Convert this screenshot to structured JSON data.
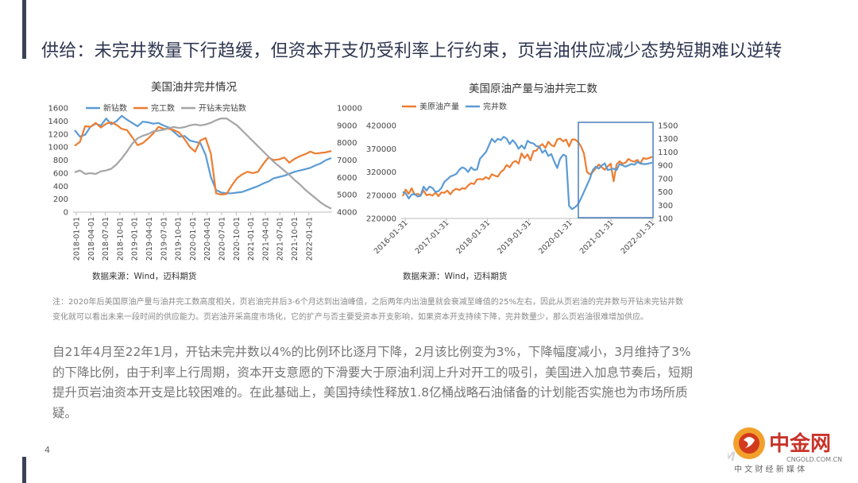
{
  "slide": {
    "title": "供给：未完井数量下行趋缓，但资本开支仍受利率上行约束，页岩油供应减少态势短期难以逆转",
    "note": "注：2020年后美国原油产量与油井完工数高度相关，页岩油完井后3-6个月达到出油峰值，之后两年内出油量就会衰减至峰值的25%左右，因此从页岩油的完井数与开钻未完钻井数变化就可以看出未来一段时间的供应能力。页岩油开采高度市场化，它的扩产与否主要受资本开支影响，如果资本开支持续下降，完井数量少，那么页岩油很难增加供应。",
    "body": "自21年4月至22年1月，开钻未完井数以4%的比例环比逐月下降，2月该比例变为3%，下降幅度减小，3月维持了3%的下降比例，由于利率上行周期，资本开支意愿的下滑要大于原油利润上升对开工的吸引，美国进入加息节奏后，短期提升页岩油资本开支是比较困难的。在此基础上，美国持续性释放1.8亿桶战略石油储备的计划能否实施也为市场所质疑。",
    "page_number": "4",
    "logo": {
      "cn": "中金网",
      "domain": "CNGOLD.COM.CN",
      "tagline": "中 文 财 经 新 媒 体",
      "overlay": "迈科期货"
    }
  },
  "colors": {
    "blue": "#5b9bd5",
    "orange": "#ed7d31",
    "gray": "#a5a5a5",
    "accent": "#3a4256"
  },
  "chart_data": [
    {
      "type": "line",
      "title": "美国油井完井情况",
      "source": "数据来源：Wind，迈科期货",
      "legend_position": "top",
      "left_axis": {
        "ticks": [
          "0",
          "200",
          "400",
          "600",
          "800",
          "1000",
          "1200",
          "1400",
          "1600"
        ],
        "range": [
          0,
          1600
        ]
      },
      "right_axis": {
        "ticks": [
          "4000",
          "5000",
          "6000",
          "7000",
          "8000",
          "9000",
          "10000"
        ],
        "range": [
          4000,
          10000
        ]
      },
      "x_ticks": [
        "2018-01-01",
        "2018-04-01",
        "2018-07-01",
        "2018-10-01",
        "2019-01-01",
        "2019-04-01",
        "2019-07-01",
        "2019-10-01",
        "2020-01-01",
        "2020-04-01",
        "2020-07-01",
        "2020-10-01",
        "2021-01-01",
        "2021-04-01",
        "2021-07-01",
        "2021-10-01",
        "2022-01-01"
      ],
      "series": [
        {
          "name": "新钻数",
          "axis": "left",
          "color": "blue",
          "values": [
            1260,
            1160,
            1190,
            1310,
            1360,
            1330,
            1440,
            1350,
            1400,
            1480,
            1420,
            1370,
            1320,
            1390,
            1380,
            1360,
            1370,
            1330,
            1300,
            1230,
            1160,
            1170,
            1100,
            1080,
            1060,
            880,
            540,
            340,
            300,
            290,
            290,
            300,
            310,
            340,
            370,
            400,
            440,
            470,
            520,
            540,
            560,
            590,
            620,
            640,
            660,
            680,
            720,
            750,
            800,
            830
          ]
        },
        {
          "name": "完工数",
          "axis": "left",
          "color": "orange",
          "values": [
            1020,
            1080,
            1320,
            1310,
            1370,
            1300,
            1360,
            1380,
            1340,
            1280,
            1260,
            1150,
            1030,
            1060,
            1130,
            1210,
            1310,
            1280,
            1280,
            1260,
            1220,
            1120,
            1000,
            930,
            1100,
            1140,
            900,
            290,
            270,
            280,
            410,
            520,
            580,
            620,
            600,
            620,
            740,
            840,
            800,
            810,
            840,
            760,
            820,
            860,
            890,
            930,
            900,
            910,
            920,
            940
          ]
        },
        {
          "name": "开钻未完钻数",
          "axis": "right",
          "color": "gray",
          "values": [
            6300,
            6400,
            6200,
            6250,
            6200,
            6350,
            6400,
            6500,
            6750,
            7100,
            7500,
            7950,
            8250,
            8400,
            8500,
            8650,
            8700,
            8750,
            8850,
            8900,
            8850,
            8900,
            9000,
            9050,
            9000,
            9050,
            9150,
            9300,
            9400,
            9400,
            9200,
            9000,
            8700,
            8400,
            8100,
            7800,
            7500,
            7200,
            6900,
            6650,
            6400,
            6150,
            5850,
            5600,
            5300,
            5050,
            4800,
            4550,
            4350,
            4200
          ]
        }
      ]
    },
    {
      "type": "line",
      "title": "美国原油产量与油井完工数",
      "source": "数据来源：Wind，迈科期货",
      "legend_position": "top",
      "left_axis": {
        "ticks": [
          "220000",
          "270000",
          "320000",
          "370000",
          "420000"
        ],
        "range": [
          220000,
          420000
        ]
      },
      "right_axis": {
        "ticks": [
          "100",
          "300",
          "500",
          "700",
          "900",
          "1100",
          "1300",
          "1500"
        ],
        "range": [
          100,
          1500
        ]
      },
      "x_ticks": [
        "2016-01-31",
        "2017-01-31",
        "2018-01-31",
        "2019-01-31",
        "2020-01-31",
        "2021-01-31",
        "2022-01-31"
      ],
      "series": [
        {
          "name": "美原油产量",
          "axis": "left",
          "color": "orange",
          "values": [
            268000,
            282000,
            273000,
            285000,
            271000,
            273000,
            270000,
            280000,
            270000,
            272000,
            269000,
            276000,
            268000,
            276000,
            275000,
            280000,
            272000,
            280000,
            284000,
            281000,
            285000,
            284000,
            291000,
            296000,
            294000,
            304000,
            305000,
            304000,
            309000,
            305000,
            315000,
            312000,
            310000,
            320000,
            325000,
            335000,
            330000,
            340000,
            344000,
            338000,
            360000,
            350000,
            358000,
            345000,
            365000,
            366000,
            375000,
            380000,
            372000,
            385000,
            378000,
            375000,
            390000,
            392000,
            386000,
            390000,
            375000,
            390000,
            390000,
            385000,
            375000,
            360000,
            320000,
            315000,
            320000,
            328000,
            336000,
            330000,
            325000,
            332000,
            338000,
            300000,
            336000,
            343000,
            338000,
            340000,
            348000,
            344000,
            342000,
            346000,
            338000,
            350000,
            348000,
            350000,
            353000
          ]
        },
        {
          "name": "完井数",
          "axis": "right",
          "color": "blue",
          "values": [
            500,
            480,
            400,
            460,
            470,
            430,
            440,
            580,
            520,
            580,
            560,
            500,
            510,
            560,
            650,
            690,
            730,
            750,
            770,
            830,
            870,
            850,
            800,
            870,
            830,
            840,
            1000,
            1050,
            1100,
            1200,
            1300,
            1250,
            1300,
            1280,
            1330,
            1300,
            1220,
            1280,
            1230,
            1150,
            1200,
            1150,
            1270,
            1240,
            1230,
            1190,
            1180,
            1090,
            1130,
            1040,
            1070,
            960,
            860,
            1000,
            1060,
            1040,
            290,
            240,
            270,
            310,
            400,
            500,
            600,
            700,
            830,
            880,
            850,
            900,
            930,
            830,
            840,
            850,
            830,
            920,
            900,
            880,
            900,
            920,
            910,
            950,
            930,
            920,
            920,
            930,
            940
          ]
        }
      ]
    }
  ]
}
